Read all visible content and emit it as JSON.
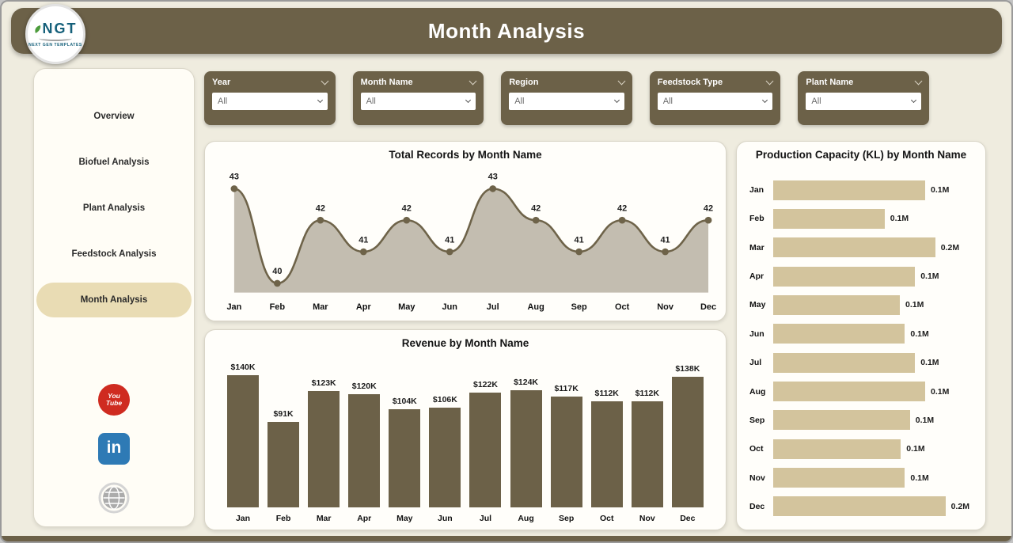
{
  "header": {
    "title": "Month Analysis"
  },
  "logo": {
    "text": "NGT",
    "subtext": "NEXT GEN TEMPLATES"
  },
  "sidebar": {
    "items": [
      {
        "label": "Overview",
        "active": false
      },
      {
        "label": "Biofuel Analysis",
        "active": false
      },
      {
        "label": "Plant Analysis",
        "active": false
      },
      {
        "label": "Feedstock Analysis",
        "active": false
      },
      {
        "label": "Month Analysis",
        "active": true
      }
    ],
    "social": [
      {
        "name": "youtube",
        "lines": [
          "You",
          "Tube"
        ],
        "color": "#cf2b20"
      },
      {
        "name": "linkedin",
        "text": "in",
        "color": "#2e7ab5"
      },
      {
        "name": "website",
        "color": "#ababab"
      }
    ]
  },
  "filters": [
    {
      "label": "Year",
      "value": "All"
    },
    {
      "label": "Month Name",
      "value": "All"
    },
    {
      "label": "Region",
      "value": "All"
    },
    {
      "label": "Feedstock Type",
      "value": "All"
    },
    {
      "label": "Plant Name",
      "value": "All"
    }
  ],
  "chart_data": [
    {
      "type": "area",
      "title": "Total Records by Month Name",
      "categories": [
        "Jan",
        "Feb",
        "Mar",
        "Apr",
        "May",
        "Jun",
        "Jul",
        "Aug",
        "Sep",
        "Oct",
        "Nov",
        "Dec"
      ],
      "values": [
        43,
        40,
        42,
        41,
        42,
        41,
        43,
        42,
        41,
        42,
        41,
        42
      ],
      "xlabel": "Month Name",
      "ylabel": "Total Records",
      "ylim": [
        40,
        43
      ],
      "grid": false,
      "legend": "none"
    },
    {
      "type": "bar",
      "title": "Revenue by Month Name",
      "categories": [
        "Jan",
        "Feb",
        "Mar",
        "Apr",
        "May",
        "Jun",
        "Jul",
        "Aug",
        "Sep",
        "Oct",
        "Nov",
        "Dec"
      ],
      "values": [
        140000,
        91000,
        123000,
        120000,
        104000,
        106000,
        122000,
        124000,
        117000,
        112000,
        112000,
        138000
      ],
      "labels": [
        "$140K",
        "$91K",
        "$123K",
        "$120K",
        "$104K",
        "$106K",
        "$122K",
        "$124K",
        "$117K",
        "$112K",
        "$112K",
        "$138K"
      ],
      "xlabel": "Month Name",
      "ylabel": "Revenue",
      "ylim": [
        0,
        140000
      ],
      "grid": false,
      "legend": "none"
    },
    {
      "type": "hbar",
      "title": "Production Capacity (KL) by Month Name",
      "categories": [
        "Jan",
        "Feb",
        "Mar",
        "Apr",
        "May",
        "Jun",
        "Jul",
        "Aug",
        "Sep",
        "Oct",
        "Nov",
        "Dec"
      ],
      "values": [
        0.15,
        0.11,
        0.16,
        0.14,
        0.125,
        0.13,
        0.14,
        0.15,
        0.135,
        0.126,
        0.13,
        0.17
      ],
      "labels": [
        "0.1M",
        "0.1M",
        "0.2M",
        "0.1M",
        "0.1M",
        "0.1M",
        "0.1M",
        "0.1M",
        "0.1M",
        "0.1M",
        "0.1M",
        "0.2M"
      ],
      "xlabel": "Production Capacity (KL)",
      "ylabel": "Month Name",
      "xlim": [
        0,
        0.17
      ],
      "grid": false,
      "legend": "none"
    }
  ],
  "colors": {
    "header_bg": "#6c6148",
    "bar": "#6c6148",
    "hbar": "#d3c49d",
    "area_fill": "#c3bdb0",
    "line": "#6e6349",
    "active_pill": "#e9dcb4",
    "youtube": "#cf2b20",
    "linkedin": "#2e7ab5",
    "background": "#efecdf"
  }
}
